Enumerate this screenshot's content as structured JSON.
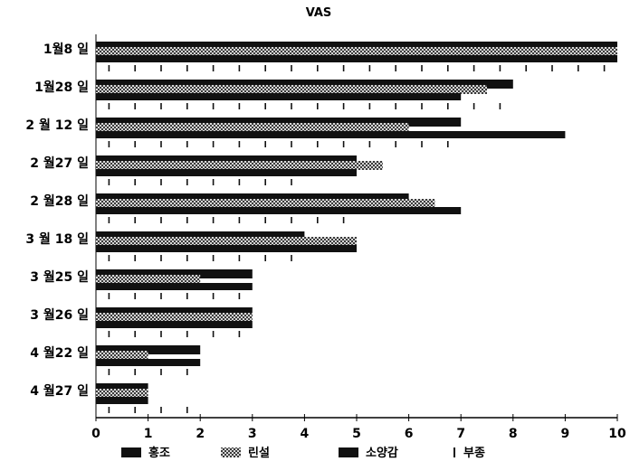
{
  "chart_data": {
    "type": "bar",
    "orientation": "horizontal",
    "title": "VAS",
    "xlabel": "",
    "ylabel": "",
    "xlim": [
      0,
      10
    ],
    "x_ticks": [
      "0",
      "1",
      "2",
      "3",
      "4",
      "5",
      "6",
      "7",
      "8",
      "9",
      "10"
    ],
    "grid": false,
    "legend_position": "bottom",
    "categories": [
      "1월8 일",
      "1월28 일",
      "2 월 12 일",
      "2 월27 일",
      "2 월28 일",
      "3 월 18 일",
      "3 월25 일",
      "3 월26 일",
      "4 월22 일",
      "4 월27 일"
    ],
    "series": [
      {
        "name": "홍조",
        "style": "solid",
        "color": "#111111",
        "values": [
          10,
          8,
          7,
          5,
          6,
          4,
          3,
          3,
          2,
          1
        ]
      },
      {
        "name": "린설",
        "style": "checker",
        "color": "#666666",
        "values": [
          10,
          7.5,
          6,
          5.5,
          6.5,
          5,
          2,
          3,
          1,
          1
        ]
      },
      {
        "name": "소양감",
        "style": "solid",
        "color": "#111111",
        "values": [
          10,
          7,
          9,
          5,
          7,
          5,
          3,
          3,
          2,
          1
        ]
      },
      {
        "name": "부종",
        "style": "ticks",
        "color": "#111111",
        "values": [
          10,
          8,
          7,
          4,
          5,
          4,
          3,
          3,
          2,
          2
        ]
      }
    ]
  }
}
